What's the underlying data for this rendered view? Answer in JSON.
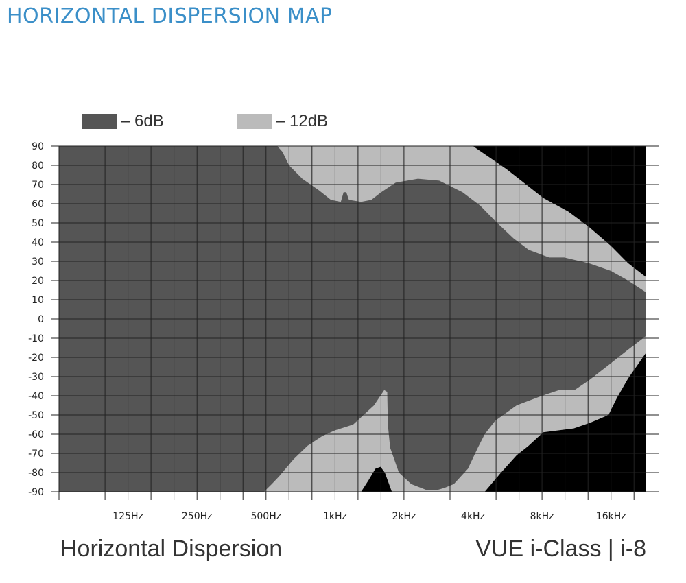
{
  "page": {
    "title": "HORIZONTAL DISPERSION MAP",
    "footer_left": "Horizontal Dispersion",
    "footer_right": "VUE i-Class | i-8"
  },
  "colors": {
    "title": "#3b8fc8",
    "minus6db": "#555555",
    "minus12db": "#bbbbbb",
    "beyond": "#000000",
    "grid": "#222222"
  },
  "chart_data": {
    "type": "heatmap",
    "title": "",
    "xlabel": "",
    "ylabel": "",
    "x_scale": "log",
    "x_unit": "Hz",
    "x_range_hz": [
      62.5,
      22627
    ],
    "y_range_deg": [
      -90,
      90
    ],
    "grid": true,
    "x_ticks": [
      {
        "hz": 125,
        "label": "125Hz"
      },
      {
        "hz": 250,
        "label": "250Hz"
      },
      {
        "hz": 500,
        "label": "500Hz"
      },
      {
        "hz": 1000,
        "label": "1kHz"
      },
      {
        "hz": 2000,
        "label": "2kHz"
      },
      {
        "hz": 4000,
        "label": "4kHz"
      },
      {
        "hz": 8000,
        "label": "8kHz"
      },
      {
        "hz": 16000,
        "label": "16kHz"
      }
    ],
    "y_ticks": [
      90,
      80,
      70,
      60,
      50,
      40,
      30,
      20,
      10,
      0,
      -10,
      -20,
      -30,
      -40,
      -50,
      -60,
      -70,
      -80,
      -90
    ],
    "legend": [
      {
        "label": "– 6dB",
        "color": "#555555"
      },
      {
        "label": "– 12dB",
        "color": "#bbbbbb"
      }
    ],
    "regions": [
      {
        "name": "– 6dB",
        "color": "#555555",
        "points": [
          [
            62.5,
            90
          ],
          [
            560,
            90
          ],
          [
            590,
            87
          ],
          [
            630,
            80
          ],
          [
            720,
            73
          ],
          [
            850,
            67
          ],
          [
            960,
            62
          ],
          [
            1060,
            61
          ],
          [
            1090,
            66
          ],
          [
            1120,
            66
          ],
          [
            1150,
            62
          ],
          [
            1300,
            61
          ],
          [
            1440,
            62
          ],
          [
            1590,
            66
          ],
          [
            1840,
            71
          ],
          [
            2300,
            73
          ],
          [
            2850,
            72
          ],
          [
            3600,
            66
          ],
          [
            4300,
            59
          ],
          [
            5000,
            51
          ],
          [
            6000,
            42
          ],
          [
            7000,
            36
          ],
          [
            8600,
            32
          ],
          [
            10000,
            32
          ],
          [
            12800,
            29
          ],
          [
            16000,
            25
          ],
          [
            19000,
            20
          ],
          [
            22627,
            14
          ],
          [
            22627,
            -9
          ],
          [
            19000,
            -16
          ],
          [
            16000,
            -23
          ],
          [
            12800,
            -32
          ],
          [
            11100,
            -37
          ],
          [
            9500,
            -37
          ],
          [
            8000,
            -40
          ],
          [
            6200,
            -45
          ],
          [
            5000,
            -53
          ],
          [
            4500,
            -60
          ],
          [
            4200,
            -67
          ],
          [
            3800,
            -78
          ],
          [
            3300,
            -86
          ],
          [
            3000,
            -88
          ],
          [
            2800,
            -89
          ],
          [
            2500,
            -89
          ],
          [
            2150,
            -86
          ],
          [
            1900,
            -80
          ],
          [
            1740,
            -67
          ],
          [
            1700,
            -55
          ],
          [
            1690,
            -38
          ],
          [
            1640,
            -37
          ],
          [
            1480,
            -45
          ],
          [
            1200,
            -55
          ],
          [
            1000,
            -58
          ],
          [
            880,
            -61
          ],
          [
            760,
            -66
          ],
          [
            660,
            -73
          ],
          [
            570,
            -82
          ],
          [
            530,
            -86
          ],
          [
            490,
            -90
          ],
          [
            62.5,
            -90
          ]
        ]
      },
      {
        "name": "– 12dB",
        "color": "#bbbbbb",
        "points": [
          [
            62.5,
            90
          ],
          [
            4000,
            90
          ],
          [
            5600,
            78
          ],
          [
            8100,
            63
          ],
          [
            10400,
            56
          ],
          [
            12800,
            48
          ],
          [
            16000,
            38
          ],
          [
            19000,
            29
          ],
          [
            22627,
            22
          ],
          [
            22627,
            -18
          ],
          [
            19000,
            -31
          ],
          [
            17000,
            -41
          ],
          [
            15600,
            -50
          ],
          [
            13000,
            -54
          ],
          [
            11000,
            -57
          ],
          [
            8100,
            -59
          ],
          [
            7000,
            -66
          ],
          [
            6200,
            -71
          ],
          [
            5300,
            -80
          ],
          [
            4500,
            -90
          ],
          [
            62.5,
            -90
          ]
        ]
      },
      {
        "name": "black-bottom",
        "color": "#000000",
        "points": [
          [
            1300,
            -90
          ],
          [
            1400,
            -84
          ],
          [
            1500,
            -78
          ],
          [
            1580,
            -77
          ],
          [
            1650,
            -80
          ],
          [
            1720,
            -86
          ],
          [
            1770,
            -90
          ]
        ]
      }
    ]
  }
}
